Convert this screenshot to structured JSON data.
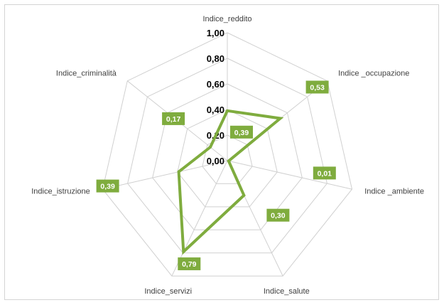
{
  "chart_data": {
    "type": "radar",
    "title": "",
    "categories": [
      "Indice_reddito",
      "Indice _occupazione",
      "Indice _ambiente",
      "Indice_salute",
      "Indice_servizi",
      "Indice_istruzione",
      "Indice_criminalità"
    ],
    "series": [
      {
        "values": [
          0.39,
          0.53,
          0.01,
          0.3,
          0.79,
          0.39,
          0.17
        ],
        "color": "#7fac3e"
      }
    ],
    "data_labels": [
      "0,39",
      "0,53",
      "0,01",
      "0,30",
      "0,79",
      "0,39",
      "0,17"
    ],
    "ticks": [
      "0,00",
      "0,20",
      "0,40",
      "0,60",
      "0,80",
      "1,00"
    ],
    "tick_values": [
      0,
      0.2,
      0.4,
      0.6,
      0.8,
      1.0
    ],
    "range": [
      0,
      1
    ],
    "grid": true,
    "legend": "none",
    "colors": {
      "series": "#7fac3e",
      "grid": "#d0d0d0",
      "label_bg": "#7fac3e"
    }
  }
}
